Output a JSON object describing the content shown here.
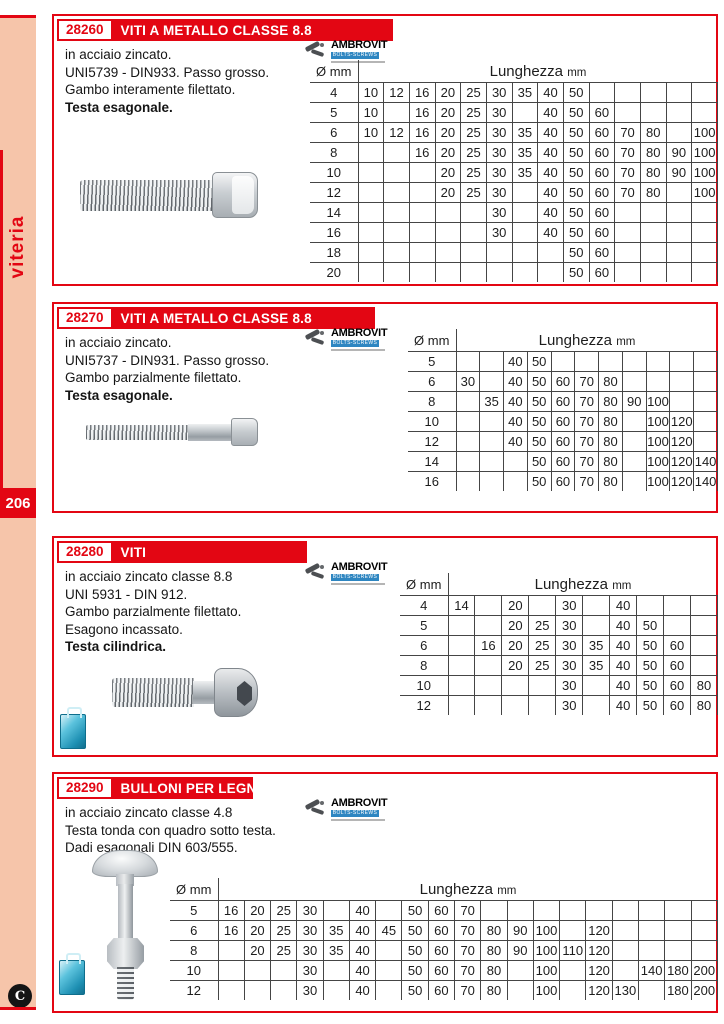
{
  "sidebar": {
    "category": "viteria",
    "page_number": "206",
    "footer_logo_letter": "C"
  },
  "brand": {
    "name": "AMBROVIT",
    "sub": "BOLTS-SCREWS"
  },
  "sections": [
    {
      "code": "28260",
      "title": "VITI A METALLO CLASSE 8.8",
      "desc_lines": [
        {
          "text": "in acciaio zincato.",
          "bold": false
        },
        {
          "text": "UNI5739 - DIN933. Passo grosso.",
          "bold": false
        },
        {
          "text": "Gambo interamente filettato.",
          "bold": false
        },
        {
          "text": "Testa esagonale.",
          "bold": true
        }
      ],
      "table": {
        "diam_header": "Ø mm",
        "length_label": "Lunghezza",
        "unit": "mm",
        "col_count": 14,
        "rows": [
          {
            "d": "4",
            "v": [
              "10",
              "12",
              "16",
              "20",
              "25",
              "30",
              "35",
              "40",
              "50",
              "",
              "",
              "",
              "",
              ""
            ]
          },
          {
            "d": "5",
            "v": [
              "10",
              "",
              "16",
              "20",
              "25",
              "30",
              "",
              "40",
              "50",
              "60",
              "",
              "",
              "",
              ""
            ]
          },
          {
            "d": "6",
            "v": [
              "10",
              "12",
              "16",
              "20",
              "25",
              "30",
              "35",
              "40",
              "50",
              "60",
              "70",
              "80",
              "",
              "100"
            ]
          },
          {
            "d": "8",
            "v": [
              "",
              "",
              "16",
              "20",
              "25",
              "30",
              "35",
              "40",
              "50",
              "60",
              "70",
              "80",
              "90",
              "100"
            ]
          },
          {
            "d": "10",
            "v": [
              "",
              "",
              "",
              "20",
              "25",
              "30",
              "35",
              "40",
              "50",
              "60",
              "70",
              "80",
              "90",
              "100"
            ]
          },
          {
            "d": "12",
            "v": [
              "",
              "",
              "",
              "20",
              "25",
              "30",
              "",
              "40",
              "50",
              "60",
              "70",
              "80",
              "",
              "100"
            ]
          },
          {
            "d": "14",
            "v": [
              "",
              "",
              "",
              "",
              "",
              "30",
              "",
              "40",
              "50",
              "60",
              "",
              "",
              "",
              ""
            ]
          },
          {
            "d": "16",
            "v": [
              "",
              "",
              "",
              "",
              "",
              "30",
              "",
              "40",
              "50",
              "60",
              "",
              "",
              "",
              ""
            ]
          },
          {
            "d": "18",
            "v": [
              "",
              "",
              "",
              "",
              "",
              "",
              "",
              "",
              "50",
              "60",
              "",
              "",
              "",
              ""
            ]
          },
          {
            "d": "20",
            "v": [
              "",
              "",
              "",
              "",
              "",
              "",
              "",
              "",
              "50",
              "60",
              "",
              "",
              "",
              ""
            ]
          }
        ]
      }
    },
    {
      "code": "28270",
      "title": "VITI A METALLO CLASSE 8.8",
      "desc_lines": [
        {
          "text": "in acciaio zincato.",
          "bold": false
        },
        {
          "text": "UNI5737 - DIN931. Passo grosso.",
          "bold": false
        },
        {
          "text": "Gambo parzialmente filettato.",
          "bold": false
        },
        {
          "text": "Testa esagonale.",
          "bold": true
        }
      ],
      "table": {
        "diam_header": "Ø mm",
        "length_label": "Lunghezza",
        "unit": "mm",
        "col_count": 11,
        "rows": [
          {
            "d": "5",
            "v": [
              "",
              "",
              "40",
              "50",
              "",
              "",
              "",
              "",
              "",
              "",
              ""
            ]
          },
          {
            "d": "6",
            "v": [
              "30",
              "",
              "40",
              "50",
              "60",
              "70",
              "80",
              "",
              "",
              "",
              ""
            ]
          },
          {
            "d": "8",
            "v": [
              "",
              "35",
              "40",
              "50",
              "60",
              "70",
              "80",
              "90",
              "100",
              "",
              ""
            ]
          },
          {
            "d": "10",
            "v": [
              "",
              "",
              "40",
              "50",
              "60",
              "70",
              "80",
              "",
              "100",
              "120",
              ""
            ]
          },
          {
            "d": "12",
            "v": [
              "",
              "",
              "40",
              "50",
              "60",
              "70",
              "80",
              "",
              "100",
              "120",
              ""
            ]
          },
          {
            "d": "14",
            "v": [
              "",
              "",
              "",
              "50",
              "60",
              "70",
              "80",
              "",
              "100",
              "120",
              "140"
            ]
          },
          {
            "d": "16",
            "v": [
              "",
              "",
              "",
              "50",
              "60",
              "70",
              "80",
              "",
              "100",
              "120",
              "140"
            ]
          }
        ]
      }
    },
    {
      "code": "28280",
      "title": "VITI",
      "desc_lines": [
        {
          "text": "in acciaio zincato classe 8.8",
          "bold": false
        },
        {
          "text": "UNI 5931 - DIN 912.",
          "bold": false
        },
        {
          "text": "Gambo parzialmente filettato.",
          "bold": false
        },
        {
          "text": "Esagono incassato.",
          "bold": false
        },
        {
          "text": "Testa cilindrica.",
          "bold": true
        }
      ],
      "table": {
        "diam_header": "Ø mm",
        "length_label": "Lunghezza",
        "unit": "mm",
        "col_count": 10,
        "rows": [
          {
            "d": "4",
            "v": [
              "14",
              "",
              "20",
              "",
              "30",
              "",
              "40",
              "",
              "",
              ""
            ]
          },
          {
            "d": "5",
            "v": [
              "",
              "",
              "20",
              "25",
              "30",
              "",
              "40",
              "50",
              "",
              ""
            ]
          },
          {
            "d": "6",
            "v": [
              "",
              "16",
              "20",
              "25",
              "30",
              "35",
              "40",
              "50",
              "60",
              ""
            ]
          },
          {
            "d": "8",
            "v": [
              "",
              "",
              "20",
              "25",
              "30",
              "35",
              "40",
              "50",
              "60",
              ""
            ]
          },
          {
            "d": "10",
            "v": [
              "",
              "",
              "",
              "",
              "30",
              "",
              "40",
              "50",
              "60",
              "80"
            ]
          },
          {
            "d": "12",
            "v": [
              "",
              "",
              "",
              "",
              "30",
              "",
              "40",
              "50",
              "60",
              "80"
            ]
          }
        ]
      }
    },
    {
      "code": "28290",
      "title": "BULLONI PER LEGNO",
      "desc_lines": [
        {
          "text": "in acciaio zincato classe 4.8",
          "bold": false
        },
        {
          "text": "Testa tonda con quadro sotto testa.",
          "bold": false
        },
        {
          "text": "Dadi esagonali  DIN 603/555.",
          "bold": false
        }
      ],
      "table": {
        "diam_header": "Ø mm",
        "length_label": "Lunghezza",
        "unit": "mm",
        "col_count": 19,
        "rows": [
          {
            "d": "5",
            "v": [
              "16",
              "20",
              "25",
              "30",
              "",
              "40",
              "",
              "50",
              "60",
              "70",
              "",
              "",
              "",
              "",
              "",
              "",
              "",
              "",
              ""
            ]
          },
          {
            "d": "6",
            "v": [
              "16",
              "20",
              "25",
              "30",
              "35",
              "40",
              "45",
              "50",
              "60",
              "70",
              "80",
              "90",
              "100",
              "",
              "120",
              "",
              "",
              "",
              ""
            ]
          },
          {
            "d": "8",
            "v": [
              "",
              "20",
              "25",
              "30",
              "35",
              "40",
              "",
              "50",
              "60",
              "70",
              "80",
              "90",
              "100",
              "110",
              "120",
              "",
              "",
              "",
              ""
            ]
          },
          {
            "d": "10",
            "v": [
              "",
              "",
              "",
              "30",
              "",
              "40",
              "",
              "50",
              "60",
              "70",
              "80",
              "",
              "100",
              "",
              "120",
              "",
              "140",
              "180",
              "200"
            ]
          },
          {
            "d": "12",
            "v": [
              "",
              "",
              "",
              "30",
              "",
              "40",
              "",
              "50",
              "60",
              "70",
              "80",
              "",
              "100",
              "",
              "120",
              "130",
              "",
              "180",
              "200"
            ]
          }
        ]
      }
    }
  ]
}
